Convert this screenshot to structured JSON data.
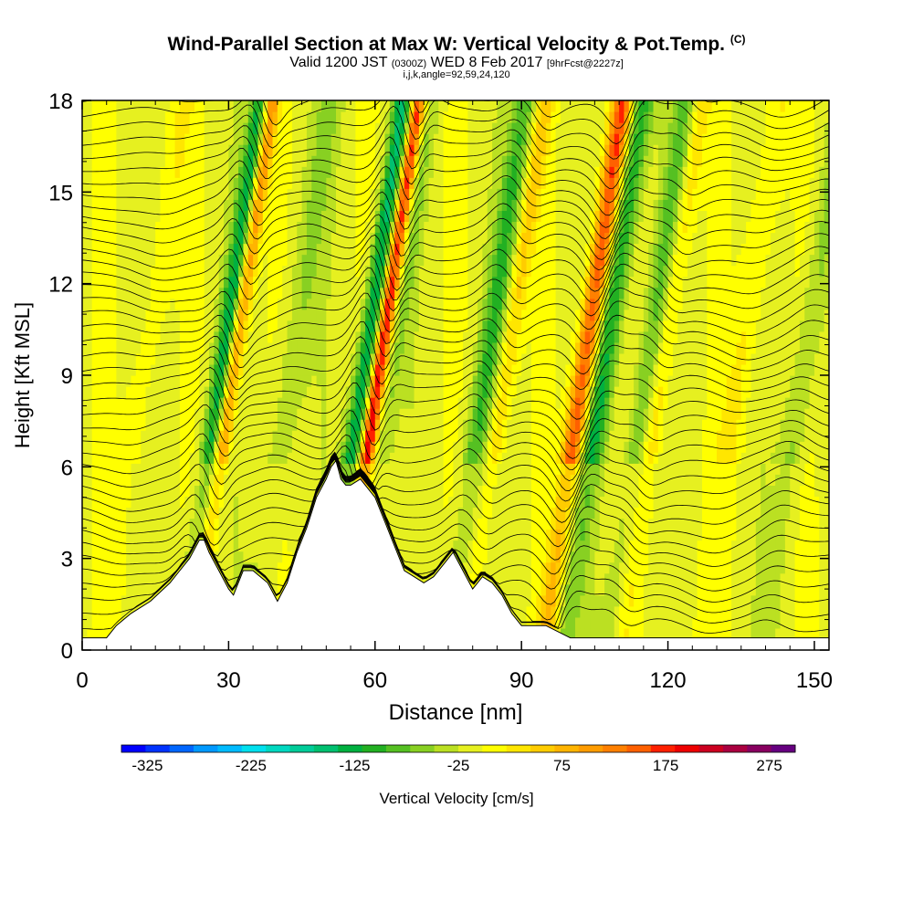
{
  "title": {
    "main": "Wind-Parallel Section at Max W: Vertical Velocity & Pot.Temp.",
    "copyright": "(C)",
    "valid": "Valid 1200 JST",
    "utc": "(0300Z)",
    "date": "WED 8 Feb 2017",
    "forecast": "[9hrFcst@2227z]",
    "params": "i,j,k,angle=92,59,24,120"
  },
  "chart_data": {
    "type": "heatmap",
    "xlabel": "Distance [nm]",
    "ylabel": "Height [Kft MSL]",
    "xlim": [
      0,
      153
    ],
    "ylim": [
      0,
      18
    ],
    "x_ticks": [
      0,
      30,
      60,
      90,
      120,
      150
    ],
    "y_ticks": [
      0,
      3,
      6,
      9,
      12,
      15,
      18
    ],
    "colorbar": {
      "label": "Vertical Velocity [cm/s]",
      "min": -350,
      "max": 300,
      "step": 25,
      "tick_labels": [
        -325,
        -225,
        -125,
        -25,
        75,
        175,
        275
      ],
      "colors": [
        "#0000ff",
        "#0033ff",
        "#0066ff",
        "#0099ff",
        "#00bbff",
        "#00e0ee",
        "#00d8c0",
        "#00cc99",
        "#00c070",
        "#00b040",
        "#22b022",
        "#55c022",
        "#88d022",
        "#bbe022",
        "#e6f020",
        "#ffff00",
        "#ffe600",
        "#ffcc00",
        "#ffb400",
        "#ff9c00",
        "#ff8000",
        "#ff6000",
        "#ff2000",
        "#ee0000",
        "#cc0020",
        "#aa0040",
        "#880060",
        "#660080"
      ]
    },
    "terrain_profile": {
      "x": [
        0,
        5,
        7,
        10,
        14,
        18,
        20,
        22,
        24,
        25,
        26,
        28,
        30,
        31,
        33,
        35,
        38,
        40,
        42,
        44,
        46,
        48,
        50,
        51,
        52,
        53,
        54,
        55,
        57,
        60,
        62,
        64,
        66,
        68,
        70,
        72,
        74,
        76,
        78,
        80,
        82,
        84,
        86,
        88,
        90,
        95,
        100,
        105,
        110,
        120,
        130,
        140,
        153
      ],
      "height": [
        0.4,
        0.4,
        0.8,
        1.2,
        1.6,
        2.2,
        2.6,
        3.0,
        3.6,
        3.6,
        3.2,
        2.6,
        2.0,
        1.8,
        2.6,
        2.6,
        2.2,
        1.6,
        2.2,
        3.2,
        4.0,
        5.0,
        5.6,
        6.0,
        6.2,
        5.6,
        5.4,
        5.4,
        5.6,
        5.0,
        4.2,
        3.4,
        2.6,
        2.4,
        2.2,
        2.4,
        2.8,
        3.2,
        2.6,
        2.0,
        2.4,
        2.2,
        1.8,
        1.2,
        0.8,
        0.8,
        0.4,
        0.4,
        0.4,
        0.4,
        0.4,
        0.4,
        0.4
      ],
      "units": [
        "nm",
        "Kft MSL"
      ]
    },
    "vertical_velocity_bands": [
      {
        "x": 28,
        "w": 1.6,
        "amp": 170
      },
      {
        "x": 26,
        "w": 2.2,
        "amp": -140
      },
      {
        "x": 58,
        "w": 1.5,
        "amp": 220
      },
      {
        "x": 55,
        "w": 2.0,
        "amp": -150
      },
      {
        "x": 61,
        "w": 1.8,
        "amp": -40
      },
      {
        "x": 100,
        "w": 2.2,
        "amp": 190
      },
      {
        "x": 104,
        "w": 2.5,
        "amp": -120
      },
      {
        "x": 84,
        "w": 2.0,
        "amp": 70
      },
      {
        "x": 80,
        "w": 2.5,
        "amp": -90
      },
      {
        "x": 113,
        "w": 2.5,
        "amp": -70
      },
      {
        "x": 116,
        "w": 2.0,
        "amp": 60
      },
      {
        "x": 40,
        "w": 3.0,
        "amp": -40
      },
      {
        "x": 132,
        "w": 3.0,
        "amp": 40
      },
      {
        "x": 145,
        "w": 2.5,
        "amp": -50
      },
      {
        "x": 10,
        "w": 3.0,
        "amp": 30
      }
    ],
    "potential_temperature_contours": {
      "count": 42,
      "interval_K": 1
    }
  }
}
